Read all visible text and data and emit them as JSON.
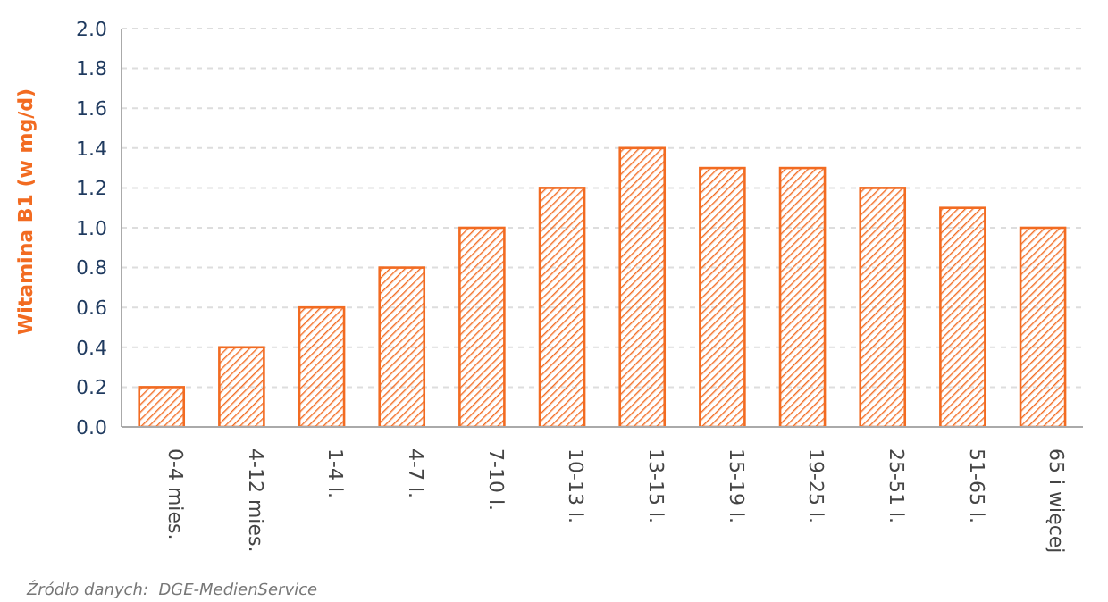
{
  "chart_data": {
    "type": "bar",
    "ylabel": "Witamina B1 (w mg/d)",
    "categories": [
      "0-4 mies.",
      "4-12 mies.",
      "1-4 l.",
      "4-7 l.",
      "7-10 l.",
      "10-13 l.",
      "13-15 l.",
      "15-19 l.",
      "19-25 l.",
      "25-51 l.",
      "51-65 l.",
      "65 i więcej"
    ],
    "values": [
      0.2,
      0.4,
      0.6,
      0.8,
      1.0,
      1.2,
      1.4,
      1.3,
      1.3,
      1.2,
      1.1,
      1.0
    ],
    "color": "#f26b21",
    "ylim": [
      0,
      2
    ],
    "yticks": [
      {
        "value": 0,
        "label": "0.0"
      },
      {
        "value": 0.2,
        "label": "0.2"
      },
      {
        "value": 0.4,
        "label": "0.4"
      },
      {
        "value": 0.6,
        "label": "0.6"
      },
      {
        "value": 0.8,
        "label": "0.8"
      },
      {
        "value": 1,
        "label": "1.0"
      },
      {
        "value": 1.2,
        "label": "1.2"
      },
      {
        "value": 1.4,
        "label": "1.4"
      },
      {
        "value": 1.6,
        "label": "1.6"
      },
      {
        "value": 1.8,
        "label": "1.8"
      },
      {
        "value": 2,
        "label": "2.0"
      }
    ],
    "grid": "y",
    "annotations": [
      "Źródło danych:  DGE-MedienService"
    ]
  }
}
